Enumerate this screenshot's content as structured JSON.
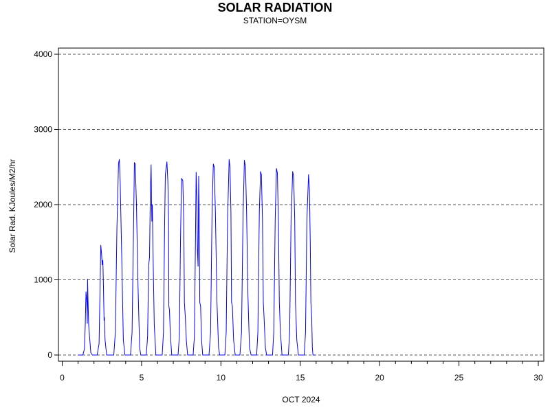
{
  "chart_data": {
    "type": "line",
    "title": "SOLAR RADIATION",
    "subtitle": "STATION=OYSM",
    "xlabel": "OCT 2024",
    "ylabel": "Solar Rad. KJoules/M2/hr",
    "xlim": [
      0,
      30
    ],
    "ylim": [
      0,
      4000
    ],
    "x_ticks": [
      0,
      5,
      10,
      15,
      20,
      25,
      30
    ],
    "y_ticks": [
      0,
      1000,
      2000,
      3000,
      4000
    ],
    "grid": "horizontal dashed",
    "series": [
      {
        "color": "#0000ff",
        "points": [
          [
            1.0,
            0
          ],
          [
            1.3,
            0
          ],
          [
            1.4,
            80
          ],
          [
            1.45,
            400
          ],
          [
            1.5,
            840
          ],
          [
            1.55,
            700
          ],
          [
            1.58,
            420
          ],
          [
            1.6,
            1010
          ],
          [
            1.63,
            700
          ],
          [
            1.67,
            400
          ],
          [
            1.72,
            250
          ],
          [
            1.8,
            30
          ],
          [
            1.9,
            0
          ],
          [
            2.2,
            0
          ],
          [
            2.32,
            150
          ],
          [
            2.38,
            800
          ],
          [
            2.43,
            1460
          ],
          [
            2.48,
            1350
          ],
          [
            2.52,
            1200
          ],
          [
            2.56,
            1260
          ],
          [
            2.6,
            900
          ],
          [
            2.64,
            460
          ],
          [
            2.66,
            500
          ],
          [
            2.7,
            200
          ],
          [
            2.8,
            0
          ],
          [
            3.25,
            0
          ],
          [
            3.35,
            300
          ],
          [
            3.45,
            1700
          ],
          [
            3.55,
            2550
          ],
          [
            3.6,
            2600
          ],
          [
            3.65,
            2300
          ],
          [
            3.75,
            1300
          ],
          [
            3.85,
            200
          ],
          [
            3.95,
            0
          ],
          [
            4.3,
            0
          ],
          [
            4.4,
            300
          ],
          [
            4.5,
            1800
          ],
          [
            4.55,
            2560
          ],
          [
            4.6,
            2540
          ],
          [
            4.68,
            2000
          ],
          [
            4.78,
            900
          ],
          [
            4.88,
            100
          ],
          [
            4.95,
            0
          ],
          [
            5.3,
            0
          ],
          [
            5.38,
            250
          ],
          [
            5.45,
            1200
          ],
          [
            5.5,
            1300
          ],
          [
            5.55,
            2100
          ],
          [
            5.6,
            2530
          ],
          [
            5.63,
            2000
          ],
          [
            5.65,
            1780
          ],
          [
            5.68,
            2000
          ],
          [
            5.72,
            1400
          ],
          [
            5.8,
            400
          ],
          [
            5.9,
            0
          ],
          [
            6.3,
            0
          ],
          [
            6.38,
            300
          ],
          [
            6.45,
            1700
          ],
          [
            6.5,
            2400
          ],
          [
            6.6,
            2570
          ],
          [
            6.66,
            2300
          ],
          [
            6.7,
            1800
          ],
          [
            6.72,
            650
          ],
          [
            6.76,
            600
          ],
          [
            6.82,
            250
          ],
          [
            6.9,
            0
          ],
          [
            7.3,
            0
          ],
          [
            7.38,
            250
          ],
          [
            7.45,
            1500
          ],
          [
            7.52,
            2350
          ],
          [
            7.6,
            2320
          ],
          [
            7.66,
            1800
          ],
          [
            7.7,
            700
          ],
          [
            7.76,
            500
          ],
          [
            7.82,
            200
          ],
          [
            7.9,
            0
          ],
          [
            8.25,
            0
          ],
          [
            8.33,
            250
          ],
          [
            8.4,
            1600
          ],
          [
            8.44,
            2430
          ],
          [
            8.48,
            2100
          ],
          [
            8.52,
            1400
          ],
          [
            8.56,
            1180
          ],
          [
            8.6,
            2380
          ],
          [
            8.63,
            1900
          ],
          [
            8.67,
            700
          ],
          [
            8.72,
            650
          ],
          [
            8.78,
            200
          ],
          [
            8.85,
            0
          ],
          [
            9.25,
            0
          ],
          [
            9.35,
            300
          ],
          [
            9.45,
            2000
          ],
          [
            9.52,
            2540
          ],
          [
            9.58,
            2500
          ],
          [
            9.65,
            1900
          ],
          [
            9.75,
            700
          ],
          [
            9.85,
            100
          ],
          [
            9.92,
            0
          ],
          [
            10.25,
            0
          ],
          [
            10.33,
            300
          ],
          [
            10.42,
            1800
          ],
          [
            10.52,
            2600
          ],
          [
            10.57,
            2500
          ],
          [
            10.63,
            1900
          ],
          [
            10.67,
            700
          ],
          [
            10.72,
            650
          ],
          [
            10.8,
            200
          ],
          [
            10.9,
            0
          ],
          [
            11.2,
            0
          ],
          [
            11.3,
            300
          ],
          [
            11.4,
            1900
          ],
          [
            11.48,
            2590
          ],
          [
            11.55,
            2500
          ],
          [
            11.62,
            1900
          ],
          [
            11.7,
            800
          ],
          [
            11.8,
            100
          ],
          [
            11.9,
            0
          ],
          [
            12.25,
            0
          ],
          [
            12.33,
            300
          ],
          [
            12.42,
            1900
          ],
          [
            12.5,
            2440
          ],
          [
            12.55,
            2400
          ],
          [
            12.62,
            1800
          ],
          [
            12.67,
            700
          ],
          [
            12.72,
            500
          ],
          [
            12.8,
            100
          ],
          [
            12.88,
            0
          ],
          [
            13.25,
            0
          ],
          [
            13.33,
            300
          ],
          [
            13.42,
            1800
          ],
          [
            13.5,
            2480
          ],
          [
            13.56,
            2420
          ],
          [
            13.62,
            1800
          ],
          [
            13.68,
            700
          ],
          [
            13.75,
            300
          ],
          [
            13.85,
            0
          ],
          [
            14.25,
            0
          ],
          [
            14.33,
            300
          ],
          [
            14.42,
            1800
          ],
          [
            14.52,
            2440
          ],
          [
            14.58,
            2380
          ],
          [
            14.65,
            1800
          ],
          [
            14.7,
            700
          ],
          [
            14.78,
            200
          ],
          [
            14.88,
            0
          ],
          [
            15.25,
            0
          ],
          [
            15.33,
            300
          ],
          [
            15.42,
            1800
          ],
          [
            15.52,
            2400
          ],
          [
            15.58,
            2200
          ],
          [
            15.63,
            1500
          ],
          [
            15.67,
            700
          ],
          [
            15.72,
            500
          ],
          [
            15.76,
            100
          ],
          [
            15.8,
            0
          ],
          [
            15.95,
            0
          ]
        ]
      }
    ]
  }
}
